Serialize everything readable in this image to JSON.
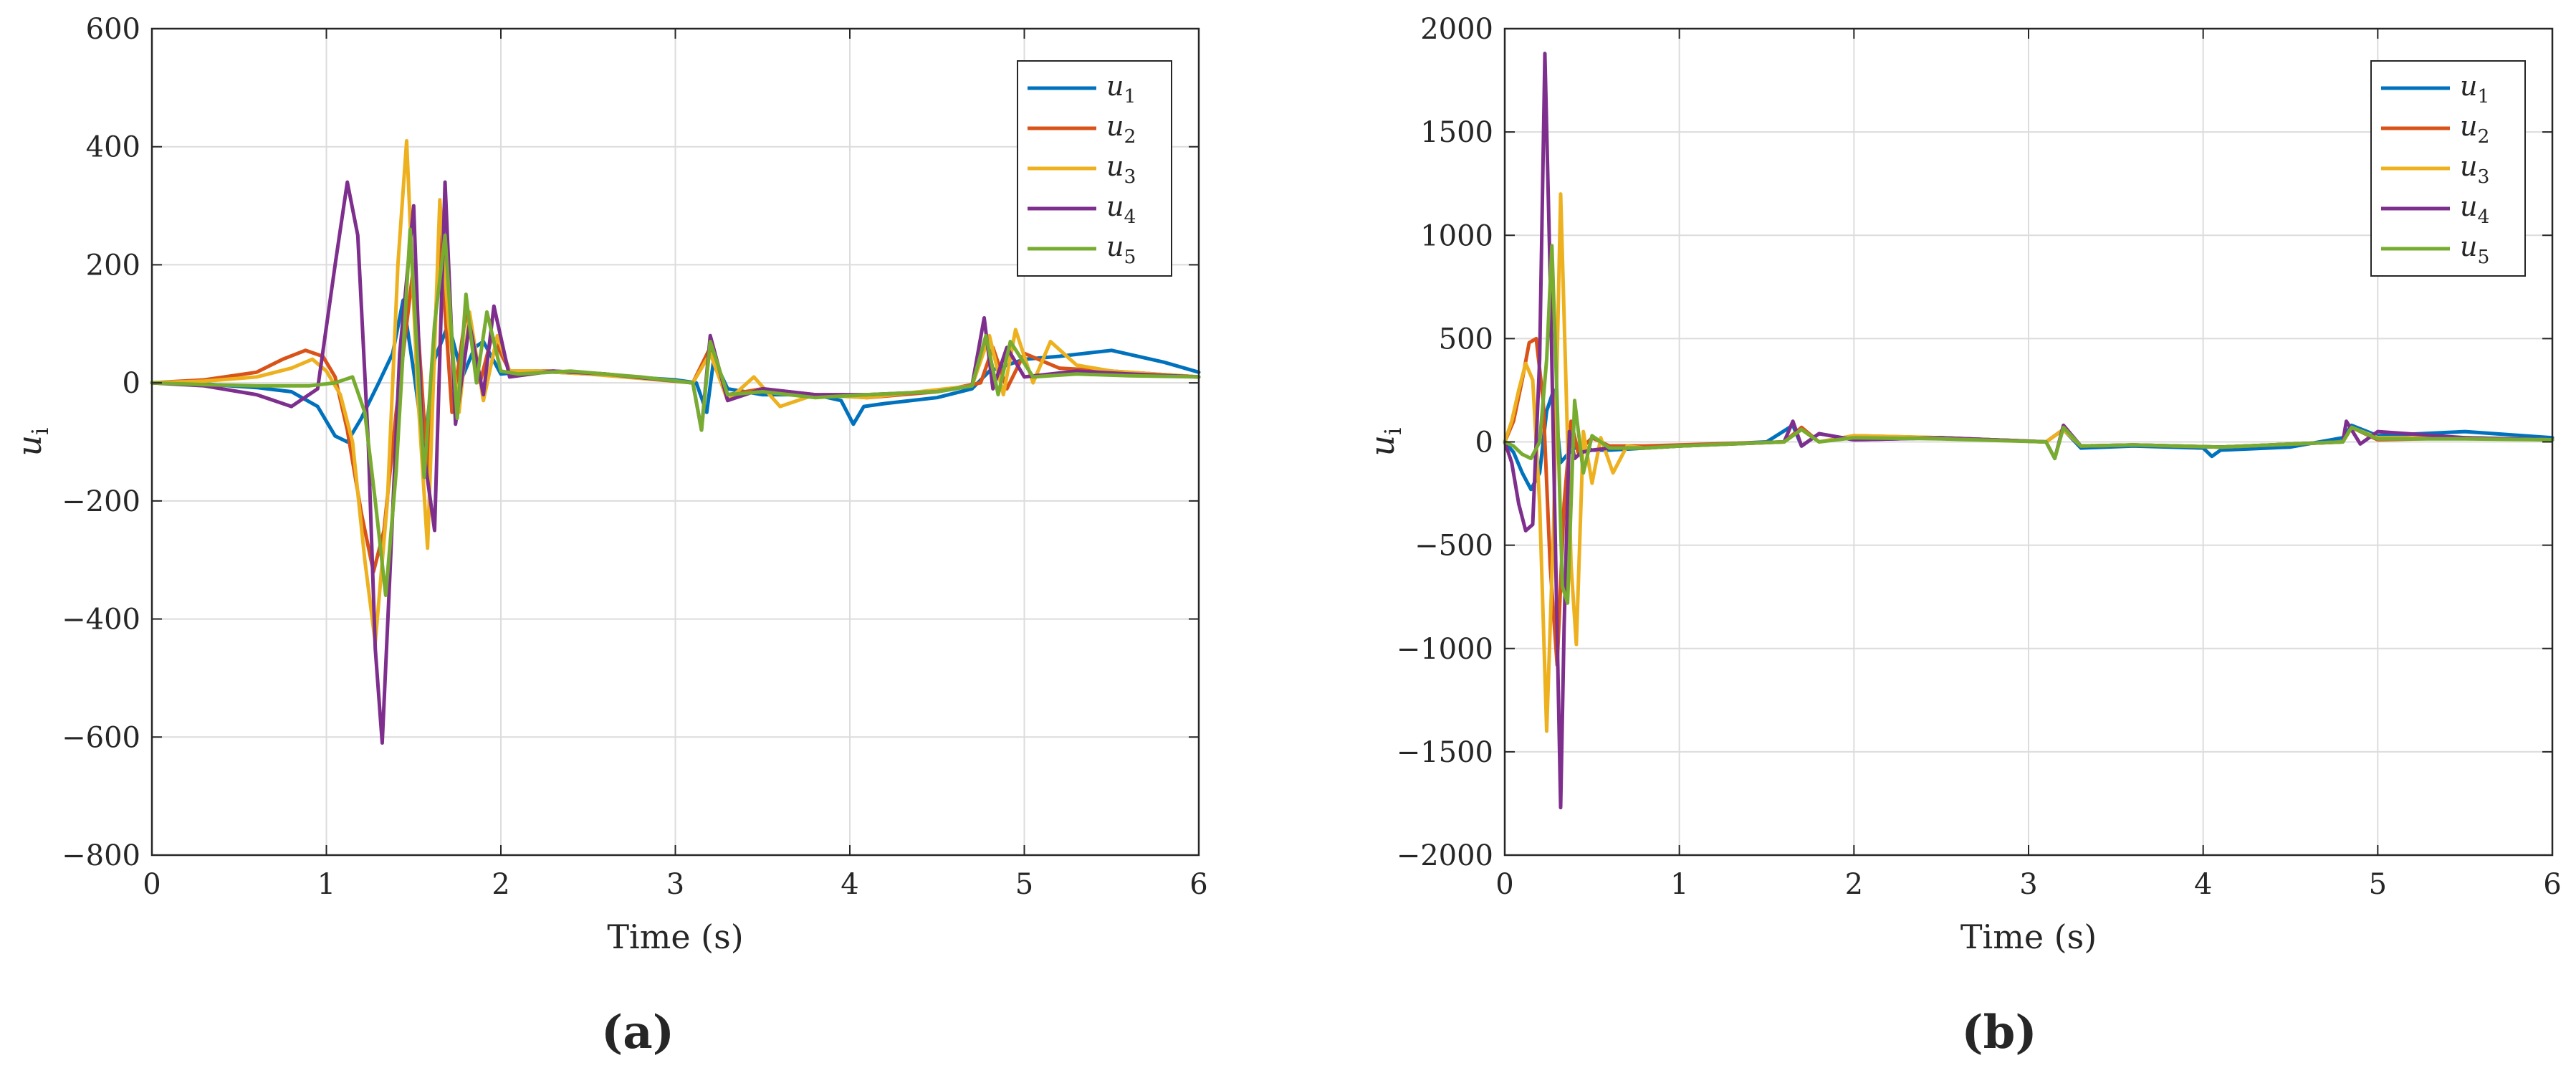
{
  "chart_data": [
    {
      "id": "a",
      "panel_label": "(a)",
      "type": "line",
      "xlabel": "Time (s)",
      "ylabel": "u_i",
      "xlim": [
        0,
        6
      ],
      "ylim": [
        -800,
        600
      ],
      "xticks": [
        0,
        1,
        2,
        3,
        4,
        5,
        6
      ],
      "yticks": [
        -800,
        -600,
        -400,
        -200,
        0,
        200,
        400,
        600
      ],
      "ytick_labels": [
        "−800",
        "−600",
        "−400",
        "−200",
        "0",
        "200",
        "400",
        "600"
      ],
      "grid": true,
      "legend_position": "top-right",
      "series": [
        {
          "name": "u_1",
          "color": "#0072BD",
          "x": [
            0,
            0.3,
            0.6,
            0.8,
            0.95,
            1.05,
            1.12,
            1.2,
            1.3,
            1.38,
            1.44,
            1.5,
            1.56,
            1.62,
            1.7,
            1.78,
            1.85,
            1.9,
            2.0,
            2.2,
            2.5,
            3.0,
            3.12,
            3.18,
            3.22,
            3.3,
            3.5,
            3.8,
            3.95,
            4.02,
            4.08,
            4.2,
            4.5,
            4.7,
            4.8,
            4.9,
            5.0,
            5.2,
            5.5,
            5.8,
            6.0
          ],
          "y": [
            0,
            -2,
            -8,
            -15,
            -40,
            -90,
            -100,
            -60,
            0,
            50,
            140,
            20,
            -110,
            40,
            100,
            10,
            60,
            70,
            15,
            20,
            15,
            5,
            0,
            -50,
            40,
            -10,
            -20,
            -20,
            -30,
            -70,
            -40,
            -35,
            -25,
            -10,
            20,
            30,
            40,
            45,
            55,
            35,
            18
          ]
        },
        {
          "name": "u_2",
          "color": "#D95319",
          "x": [
            0,
            0.3,
            0.6,
            0.75,
            0.88,
            0.98,
            1.05,
            1.12,
            1.2,
            1.27,
            1.33,
            1.4,
            1.5,
            1.58,
            1.65,
            1.72,
            1.8,
            1.88,
            1.95,
            2.05,
            2.3,
            2.6,
            3.1,
            3.2,
            3.3,
            3.5,
            3.8,
            4.1,
            4.5,
            4.75,
            4.82,
            4.9,
            5.0,
            5.2,
            5.5,
            6.0
          ],
          "y": [
            0,
            5,
            18,
            40,
            55,
            45,
            10,
            -80,
            -220,
            -320,
            -250,
            -50,
            200,
            -150,
            250,
            -50,
            120,
            0,
            80,
            20,
            20,
            15,
            0,
            60,
            -20,
            -10,
            -20,
            -25,
            -15,
            0,
            60,
            -10,
            50,
            25,
            20,
            10
          ]
        },
        {
          "name": "u_3",
          "color": "#EDB120",
          "x": [
            0,
            0.3,
            0.6,
            0.8,
            0.92,
            1.0,
            1.08,
            1.15,
            1.22,
            1.28,
            1.35,
            1.41,
            1.46,
            1.52,
            1.58,
            1.65,
            1.7,
            1.76,
            1.82,
            1.9,
            1.98,
            2.05,
            2.2,
            2.5,
            3.1,
            3.2,
            3.3,
            3.45,
            3.6,
            3.8,
            4.1,
            4.4,
            4.7,
            4.8,
            4.88,
            4.95,
            5.05,
            5.15,
            5.3,
            5.5,
            6.0
          ],
          "y": [
            0,
            3,
            10,
            25,
            40,
            20,
            -20,
            -100,
            -300,
            -440,
            -200,
            200,
            410,
            0,
            -280,
            310,
            100,
            -50,
            120,
            -30,
            80,
            20,
            20,
            15,
            0,
            50,
            -30,
            10,
            -40,
            -20,
            -25,
            -15,
            -5,
            80,
            -20,
            90,
            0,
            70,
            30,
            20,
            10
          ]
        },
        {
          "name": "u_4",
          "color": "#7E2F8E",
          "x": [
            0,
            0.3,
            0.6,
            0.8,
            0.95,
            1.05,
            1.12,
            1.18,
            1.24,
            1.28,
            1.32,
            1.36,
            1.42,
            1.5,
            1.55,
            1.62,
            1.68,
            1.74,
            1.82,
            1.9,
            1.96,
            2.05,
            2.3,
            2.6,
            3.1,
            3.15,
            3.2,
            3.3,
            3.5,
            3.8,
            4.1,
            4.5,
            4.7,
            4.77,
            4.82,
            4.9,
            5.0,
            5.3,
            5.6,
            6.0
          ],
          "y": [
            0,
            -5,
            -20,
            -40,
            -10,
            200,
            340,
            250,
            -100,
            -450,
            -610,
            -350,
            50,
            300,
            -100,
            -250,
            340,
            -70,
            100,
            -20,
            130,
            10,
            20,
            15,
            0,
            -80,
            80,
            -30,
            -10,
            -20,
            -20,
            -15,
            -5,
            110,
            -10,
            60,
            10,
            20,
            15,
            10
          ]
        },
        {
          "name": "u_5",
          "color": "#77AC30",
          "x": [
            0,
            0.3,
            0.6,
            0.9,
            1.05,
            1.15,
            1.22,
            1.28,
            1.34,
            1.4,
            1.48,
            1.56,
            1.62,
            1.68,
            1.75,
            1.8,
            1.86,
            1.92,
            2.0,
            2.1,
            2.4,
            2.8,
            3.1,
            3.15,
            3.2,
            3.3,
            3.5,
            3.8,
            4.1,
            4.5,
            4.7,
            4.78,
            4.85,
            4.92,
            5.05,
            5.3,
            5.6,
            6.0
          ],
          "y": [
            0,
            -3,
            -5,
            -5,
            0,
            10,
            -50,
            -200,
            -360,
            -150,
            260,
            -160,
            100,
            250,
            -60,
            150,
            0,
            120,
            20,
            15,
            20,
            10,
            0,
            -80,
            70,
            -20,
            -15,
            -25,
            -20,
            -15,
            -5,
            80,
            -20,
            70,
            10,
            15,
            12,
            10
          ]
        }
      ]
    },
    {
      "id": "b",
      "panel_label": "(b)",
      "type": "line",
      "xlabel": "Time (s)",
      "ylabel": "u_i",
      "xlim": [
        0,
        6
      ],
      "ylim": [
        -2000,
        2000
      ],
      "xticks": [
        0,
        1,
        2,
        3,
        4,
        5,
        6
      ],
      "yticks": [
        -2000,
        -1500,
        -1000,
        -500,
        0,
        500,
        1000,
        1500,
        2000
      ],
      "ytick_labels": [
        "−2000",
        "−1500",
        "−1000",
        "−500",
        "0",
        "500",
        "1000",
        "1500",
        "2000"
      ],
      "grid": true,
      "legend_position": "top-right",
      "series": [
        {
          "name": "u_1",
          "color": "#0072BD",
          "x": [
            0,
            0.05,
            0.1,
            0.15,
            0.2,
            0.24,
            0.28,
            0.32,
            0.36,
            0.4,
            0.45,
            0.5,
            0.6,
            0.8,
            1.0,
            1.5,
            1.65,
            1.7,
            1.8,
            2.0,
            2.5,
            3.1,
            3.2,
            3.3,
            3.6,
            4.0,
            4.05,
            4.1,
            4.5,
            4.8,
            4.85,
            5.0,
            5.5,
            6.0
          ],
          "y": [
            0,
            -50,
            -150,
            -230,
            -150,
            150,
            250,
            -100,
            -60,
            -30,
            -20,
            -40,
            -40,
            -30,
            -20,
            0,
            80,
            -20,
            40,
            10,
            20,
            0,
            60,
            -30,
            -20,
            -30,
            -70,
            -40,
            -25,
            20,
            80,
            30,
            50,
            20
          ]
        },
        {
          "name": "u_2",
          "color": "#D95319",
          "x": [
            0,
            0.05,
            0.1,
            0.14,
            0.18,
            0.22,
            0.26,
            0.3,
            0.34,
            0.38,
            0.42,
            0.5,
            0.6,
            0.8,
            1.0,
            1.6,
            1.7,
            1.8,
            2.0,
            2.5,
            3.1,
            3.2,
            3.3,
            3.6,
            4.1,
            4.8,
            4.85,
            5.0,
            5.5,
            6.0
          ],
          "y": [
            0,
            100,
            300,
            480,
            500,
            200,
            -600,
            -1080,
            -300,
            100,
            -50,
            20,
            -20,
            -20,
            -15,
            0,
            70,
            0,
            30,
            20,
            0,
            60,
            -20,
            -15,
            -25,
            0,
            70,
            10,
            20,
            10
          ]
        },
        {
          "name": "u_3",
          "color": "#EDB120",
          "x": [
            0,
            0.04,
            0.08,
            0.12,
            0.16,
            0.2,
            0.24,
            0.28,
            0.32,
            0.35,
            0.38,
            0.41,
            0.45,
            0.5,
            0.55,
            0.62,
            0.7,
            0.8,
            1.0,
            1.6,
            1.7,
            1.8,
            2.0,
            2.5,
            3.1,
            3.2,
            3.3,
            3.6,
            4.1,
            4.8,
            4.85,
            5.0,
            5.5,
            6.0
          ],
          "y": [
            0,
            100,
            250,
            380,
            300,
            -300,
            -1400,
            -400,
            1200,
            300,
            -600,
            -980,
            50,
            -200,
            20,
            -150,
            -20,
            -30,
            -20,
            0,
            60,
            0,
            30,
            20,
            0,
            60,
            -20,
            -15,
            -25,
            0,
            70,
            20,
            20,
            10
          ]
        },
        {
          "name": "u_4",
          "color": "#7E2F8E",
          "x": [
            0,
            0.04,
            0.08,
            0.12,
            0.16,
            0.2,
            0.23,
            0.26,
            0.29,
            0.32,
            0.34,
            0.37,
            0.4,
            0.44,
            0.5,
            0.6,
            0.8,
            1.0,
            1.6,
            1.65,
            1.7,
            1.8,
            2.0,
            2.5,
            3.1,
            3.15,
            3.2,
            3.3,
            3.6,
            4.1,
            4.8,
            4.82,
            4.9,
            5.0,
            5.5,
            6.0
          ],
          "y": [
            0,
            -100,
            -300,
            -430,
            -400,
            400,
            1880,
            800,
            -500,
            -1770,
            -900,
            50,
            -80,
            -50,
            -40,
            -30,
            -30,
            -20,
            0,
            100,
            -20,
            40,
            10,
            20,
            0,
            -80,
            80,
            -20,
            -15,
            -25,
            0,
            100,
            -10,
            50,
            20,
            10
          ]
        },
        {
          "name": "u_5",
          "color": "#77AC30",
          "x": [
            0,
            0.05,
            0.1,
            0.15,
            0.2,
            0.24,
            0.27,
            0.3,
            0.33,
            0.36,
            0.4,
            0.45,
            0.5,
            0.6,
            0.8,
            1.0,
            1.6,
            1.7,
            1.8,
            2.0,
            2.5,
            3.1,
            3.15,
            3.2,
            3.3,
            3.6,
            4.1,
            4.8,
            4.85,
            5.0,
            5.5,
            6.0
          ],
          "y": [
            0,
            -20,
            -60,
            -80,
            0,
            400,
            950,
            200,
            -700,
            -780,
            200,
            -150,
            30,
            -30,
            -30,
            -20,
            0,
            60,
            0,
            20,
            15,
            0,
            -80,
            70,
            -20,
            -15,
            -25,
            0,
            70,
            15,
            15,
            10
          ]
        }
      ]
    }
  ]
}
